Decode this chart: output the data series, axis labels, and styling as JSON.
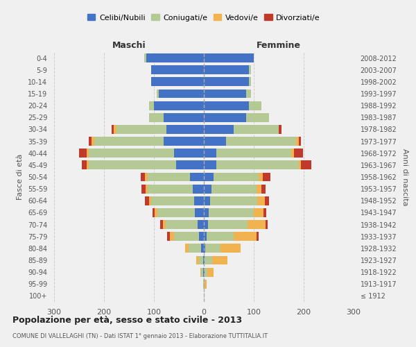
{
  "age_groups": [
    "100+",
    "95-99",
    "90-94",
    "85-89",
    "80-84",
    "75-79",
    "70-74",
    "65-69",
    "60-64",
    "55-59",
    "50-54",
    "45-49",
    "40-44",
    "35-39",
    "30-34",
    "25-29",
    "20-24",
    "15-19",
    "10-14",
    "5-9",
    "0-4"
  ],
  "birth_years": [
    "≤ 1912",
    "1913-1917",
    "1918-1922",
    "1923-1927",
    "1928-1932",
    "1933-1937",
    "1938-1942",
    "1943-1947",
    "1948-1952",
    "1953-1957",
    "1958-1962",
    "1963-1967",
    "1968-1972",
    "1973-1977",
    "1978-1982",
    "1983-1987",
    "1988-1992",
    "1993-1997",
    "1998-2002",
    "2003-2007",
    "2008-2012"
  ],
  "maschi": {
    "celibi": [
      0,
      0,
      2,
      2,
      5,
      10,
      12,
      18,
      20,
      22,
      28,
      55,
      60,
      80,
      75,
      80,
      100,
      90,
      105,
      105,
      115
    ],
    "coniugati": [
      0,
      1,
      3,
      8,
      25,
      50,
      65,
      75,
      85,
      90,
      85,
      175,
      170,
      140,
      100,
      30,
      10,
      5,
      0,
      0,
      5
    ],
    "vedovi": [
      0,
      0,
      2,
      5,
      8,
      8,
      5,
      5,
      5,
      5,
      5,
      5,
      5,
      5,
      5,
      0,
      0,
      0,
      0,
      0,
      0
    ],
    "divorziati": [
      0,
      0,
      0,
      0,
      0,
      5,
      5,
      5,
      8,
      8,
      8,
      10,
      15,
      5,
      5,
      0,
      0,
      0,
      0,
      0,
      0
    ]
  },
  "femmine": {
    "nubili": [
      0,
      0,
      2,
      2,
      3,
      5,
      8,
      10,
      12,
      15,
      20,
      25,
      25,
      45,
      60,
      85,
      90,
      85,
      90,
      90,
      100
    ],
    "coniugate": [
      0,
      2,
      5,
      15,
      30,
      55,
      80,
      90,
      95,
      90,
      90,
      165,
      150,
      140,
      90,
      45,
      25,
      10,
      5,
      5,
      0
    ],
    "vedove": [
      0,
      3,
      12,
      30,
      40,
      45,
      35,
      20,
      15,
      10,
      8,
      5,
      5,
      5,
      0,
      0,
      0,
      0,
      0,
      0,
      0
    ],
    "divorziate": [
      0,
      0,
      0,
      0,
      0,
      5,
      5,
      5,
      8,
      8,
      15,
      20,
      18,
      5,
      5,
      0,
      0,
      0,
      0,
      0,
      0
    ]
  },
  "colors": {
    "celibi": "#4472c4",
    "coniugati": "#b5c994",
    "vedovi": "#f0b350",
    "divorziati": "#c0392b"
  },
  "title": "Popolazione per età, sesso e stato civile - 2013",
  "subtitle": "COMUNE DI VALLELAGHI (TN) - Dati ISTAT 1° gennaio 2013 - Elaborazione TUTTITALIA.IT",
  "xlabel_maschi": "Maschi",
  "xlabel_femmine": "Femmine",
  "ylabel": "Fasce di età",
  "ylabel_right": "Anni di nascita",
  "legend_labels": [
    "Celibi/Nubili",
    "Coniugati/e",
    "Vedovi/e",
    "Divorziati/e"
  ],
  "xlim": 300,
  "background_color": "#f0f0f0",
  "grid_color": "#cccccc"
}
